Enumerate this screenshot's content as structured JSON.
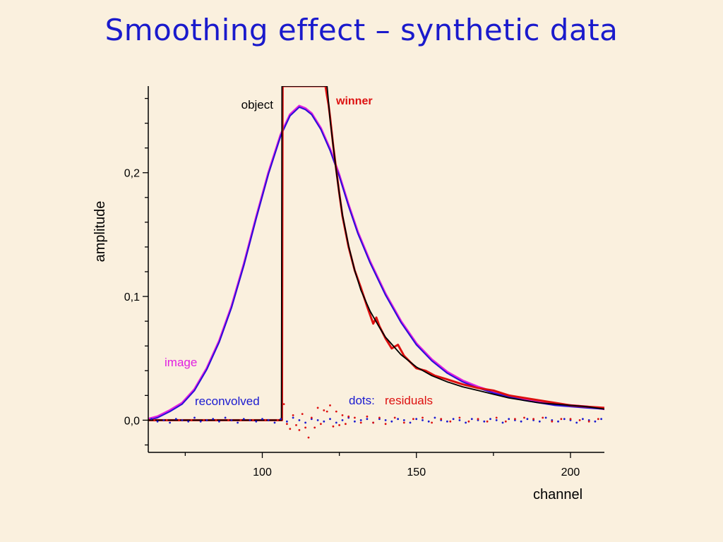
{
  "title": "Smoothing effect – synthetic data",
  "chart_data": {
    "type": "line",
    "xlabel": "channel",
    "ylabel": "amplitude",
    "xlim": [
      63,
      211
    ],
    "ylim": [
      -0.026,
      0.27
    ],
    "x_ticks": [
      100,
      150,
      200
    ],
    "y_ticks": [
      0.0,
      0.1,
      0.2
    ],
    "y_tick_labels": [
      "0,0",
      "0,1",
      "0,2"
    ],
    "grid": false,
    "colors": {
      "image": "#e020e0",
      "reconvolved": "#2a10d8",
      "winner": "#dd1010",
      "object": "#000000",
      "residuals_reconvolved": "#1a1ad0",
      "residuals_winner": "#dd1010"
    },
    "annotations": {
      "object": "object",
      "winner": "winner",
      "image": "image",
      "reconvolved": "reconvolved",
      "dots": "dots:",
      "residuals": "residuals"
    },
    "series": [
      {
        "name": "image",
        "x": [
          63,
          66,
          70,
          74,
          78,
          82,
          86,
          90,
          94,
          98,
          102,
          106,
          109,
          112,
          114,
          116,
          119,
          122,
          125,
          128,
          131,
          135,
          140,
          145,
          150,
          155,
          160,
          165,
          170,
          175,
          180,
          185,
          190,
          195,
          200,
          205,
          211
        ],
        "y": [
          0.001,
          0.003,
          0.008,
          0.014,
          0.025,
          0.042,
          0.064,
          0.092,
          0.126,
          0.164,
          0.2,
          0.231,
          0.247,
          0.254,
          0.252,
          0.248,
          0.236,
          0.219,
          0.198,
          0.174,
          0.152,
          0.128,
          0.102,
          0.08,
          0.062,
          0.049,
          0.039,
          0.032,
          0.027,
          0.023,
          0.02,
          0.017,
          0.015,
          0.013,
          0.012,
          0.011,
          0.009
        ]
      },
      {
        "name": "reconvolved",
        "x": [
          63,
          66,
          70,
          74,
          78,
          82,
          86,
          90,
          94,
          98,
          102,
          106,
          109,
          112,
          114,
          116,
          119,
          122,
          125,
          128,
          131,
          135,
          140,
          145,
          150,
          155,
          160,
          165,
          170,
          175,
          180,
          185,
          190,
          195,
          200,
          205,
          211
        ],
        "y": [
          0.0,
          0.002,
          0.007,
          0.013,
          0.024,
          0.041,
          0.063,
          0.091,
          0.125,
          0.163,
          0.199,
          0.23,
          0.246,
          0.253,
          0.251,
          0.247,
          0.235,
          0.218,
          0.197,
          0.173,
          0.151,
          0.127,
          0.101,
          0.079,
          0.061,
          0.048,
          0.038,
          0.031,
          0.026,
          0.022,
          0.019,
          0.016,
          0.014,
          0.012,
          0.011,
          0.01,
          0.009
        ]
      },
      {
        "name": "winner",
        "x": [
          63,
          80,
          100,
          106,
          106.4,
          106.6,
          120.5,
          121,
          121.5,
          122,
          123,
          124,
          125,
          126,
          128,
          130,
          132,
          134,
          136,
          137,
          138,
          140,
          142,
          144,
          146,
          148,
          150,
          153,
          156,
          160,
          165,
          170,
          175,
          180,
          185,
          190,
          195,
          200,
          205,
          211
        ],
        "y": [
          0.0,
          0.0,
          0.0,
          0.0,
          0.0,
          0.27,
          0.27,
          0.262,
          0.255,
          0.245,
          0.222,
          0.202,
          0.183,
          0.165,
          0.14,
          0.121,
          0.107,
          0.092,
          0.078,
          0.083,
          0.076,
          0.066,
          0.058,
          0.061,
          0.052,
          0.047,
          0.042,
          0.04,
          0.036,
          0.033,
          0.029,
          0.026,
          0.024,
          0.02,
          0.018,
          0.016,
          0.014,
          0.012,
          0.011,
          0.01
        ]
      },
      {
        "name": "object",
        "x": [
          63,
          80,
          100,
          106,
          106.2,
          106.4,
          121.0,
          121.3,
          122,
          123,
          124,
          125,
          126,
          128,
          130,
          132,
          135,
          138,
          140,
          145,
          150,
          155,
          160,
          165,
          170,
          175,
          180,
          185,
          190,
          195,
          200,
          205,
          211
        ],
        "y": [
          0.0,
          0.0,
          0.0,
          0.0,
          0.0,
          0.27,
          0.27,
          0.262,
          0.243,
          0.222,
          0.201,
          0.183,
          0.166,
          0.141,
          0.121,
          0.105,
          0.088,
          0.075,
          0.067,
          0.053,
          0.043,
          0.036,
          0.031,
          0.027,
          0.024,
          0.021,
          0.018,
          0.016,
          0.014,
          0.013,
          0.012,
          0.011,
          0.009
        ]
      }
    ],
    "residuals": [
      {
        "name": "reconvolved",
        "x": [
          64,
          66,
          68,
          70,
          72,
          74,
          76,
          78,
          80,
          82,
          84,
          86,
          88,
          90,
          92,
          94,
          96,
          98,
          100,
          102,
          104,
          106,
          108,
          110,
          112,
          114,
          116,
          118,
          120,
          122,
          124,
          126,
          128,
          130,
          132,
          134,
          136,
          138,
          140,
          142,
          144,
          146,
          148,
          150,
          152,
          154,
          156,
          158,
          160,
          162,
          164,
          166,
          168,
          170,
          172,
          174,
          176,
          178,
          180,
          182,
          184,
          186,
          188,
          190,
          192,
          194,
          196,
          198,
          200,
          202,
          204,
          206,
          208,
          210
        ],
        "y": [
          0.001,
          -0.001,
          0.0,
          -0.002,
          0.001,
          0.0,
          -0.001,
          0.002,
          -0.001,
          0.0,
          0.001,
          -0.001,
          0.002,
          0.0,
          -0.002,
          0.001,
          0.0,
          -0.001,
          0.001,
          0.0,
          -0.002,
          0.001,
          -0.001,
          0.002,
          0.0,
          -0.002,
          0.001,
          0.0,
          -0.001,
          0.001,
          -0.002,
          0.0,
          0.002,
          -0.001,
          0.0,
          0.001,
          -0.002,
          0.001,
          0.0,
          -0.001,
          0.001,
          0.0,
          -0.002,
          0.001,
          0.0,
          -0.001,
          0.002,
          0.0,
          -0.001,
          0.001,
          0.0,
          -0.002,
          0.001,
          0.0,
          -0.001,
          0.001,
          0.0,
          -0.002,
          0.001,
          0.0,
          -0.001,
          0.001,
          0.0,
          -0.001,
          0.002,
          0.0,
          -0.001,
          0.001,
          0.0,
          -0.002,
          0.001,
          0.0,
          -0.001,
          0.001
        ]
      },
      {
        "name": "winner",
        "x": [
          65,
          69,
          73,
          77,
          81,
          85,
          89,
          93,
          97,
          101,
          105,
          107,
          108,
          109,
          110,
          111,
          112,
          113,
          114,
          115,
          116,
          117,
          118,
          119,
          120,
          121,
          122,
          123,
          124,
          125,
          126,
          127,
          128,
          130,
          132,
          134,
          136,
          138,
          140,
          143,
          146,
          149,
          152,
          155,
          158,
          161,
          164,
          167,
          170,
          173,
          176,
          179,
          182,
          185,
          188,
          191,
          194,
          197,
          200,
          203,
          206,
          209
        ],
        "y": [
          0.0,
          0.0,
          0.0,
          0.0,
          0.0,
          0.0,
          0.0,
          0.0,
          0.0,
          0.0,
          0.0,
          0.013,
          -0.003,
          -0.007,
          0.004,
          -0.004,
          -0.008,
          0.005,
          -0.006,
          -0.014,
          0.002,
          -0.006,
          0.01,
          -0.003,
          0.008,
          0.007,
          0.012,
          -0.005,
          0.007,
          -0.004,
          0.004,
          -0.003,
          0.003,
          0.002,
          -0.002,
          0.003,
          -0.002,
          0.002,
          -0.003,
          0.002,
          -0.002,
          0.001,
          0.002,
          -0.002,
          0.001,
          -0.001,
          0.002,
          -0.001,
          0.001,
          -0.001,
          0.002,
          -0.001,
          0.001,
          0.002,
          0.001,
          0.002,
          -0.001,
          0.001,
          0.001,
          0.0,
          -0.001,
          0.001
        ]
      }
    ]
  }
}
